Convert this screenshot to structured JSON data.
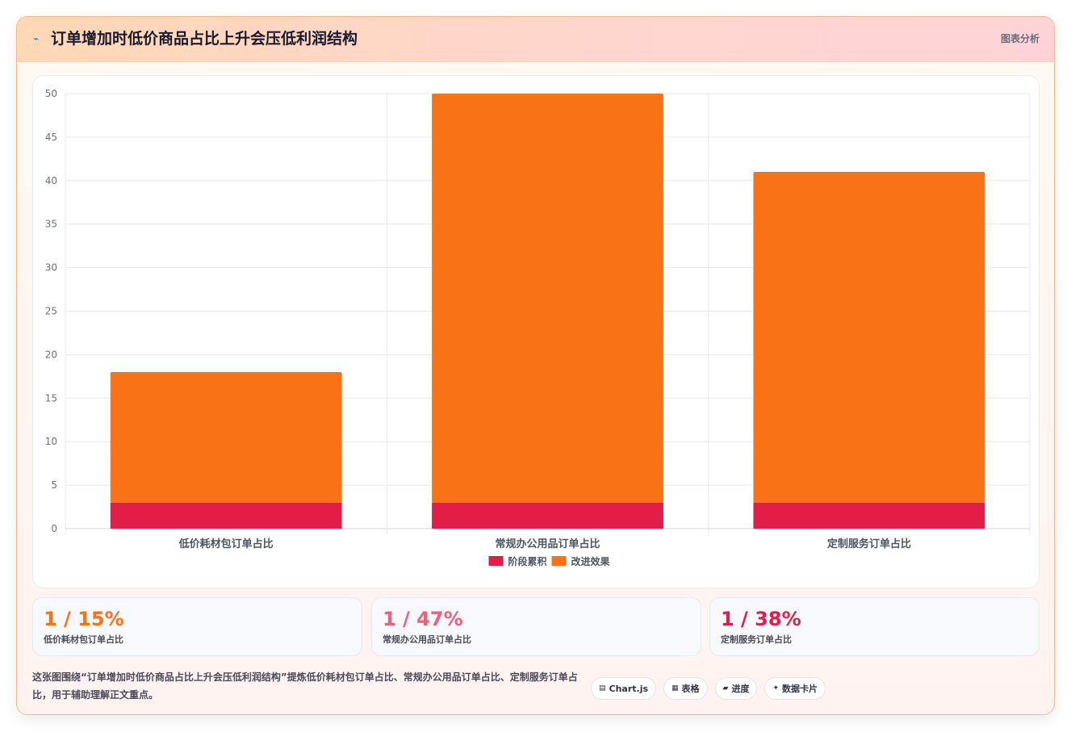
{
  "header": {
    "icon": "trend-icon",
    "title": "订单增加时低价商品占比上升会压低利润结构",
    "tag": "图表分析"
  },
  "chart_data": {
    "type": "bar",
    "stacked": true,
    "categories": [
      "低价耗材包订单占比",
      "常规办公用品订单占比",
      "定制服务订单占比"
    ],
    "series": [
      {
        "name": "阶段累积",
        "values": [
          3,
          3,
          3
        ],
        "color": "#e11d48"
      },
      {
        "name": "改进效果",
        "values": [
          15,
          47,
          38
        ],
        "color": "#f97316"
      }
    ],
    "ylim": [
      0,
      50
    ],
    "yticks": [
      0,
      5,
      10,
      15,
      20,
      25,
      30,
      35,
      40,
      45,
      50
    ],
    "grid": true,
    "legend": "bottom"
  },
  "stats": [
    {
      "value": "1 / 15%",
      "label": "低价耗材包订单占比",
      "color": "#f97316"
    },
    {
      "value": "1 / 47%",
      "label": "常规办公用品订单占比",
      "color": "#f0607a"
    },
    {
      "value": "1 / 38%",
      "label": "定制服务订单占比",
      "color": "#e11d48"
    }
  ],
  "note": "这张图围绕“订单增加时低价商品占比上升会压低利润结构”提炼低价耗材包订单占比、常规办公用品订单占比、定制服务订单占比，用于辅助理解正文重点。",
  "chips": [
    {
      "icon": "chart-icon",
      "glyph": "▤",
      "label": "Chart.js"
    },
    {
      "icon": "table-icon",
      "glyph": "▦",
      "label": "表格"
    },
    {
      "icon": "progress-icon",
      "glyph": "▰",
      "label": "进度"
    },
    {
      "icon": "sparkle-icon",
      "glyph": "✦",
      "label": "数据卡片"
    }
  ]
}
